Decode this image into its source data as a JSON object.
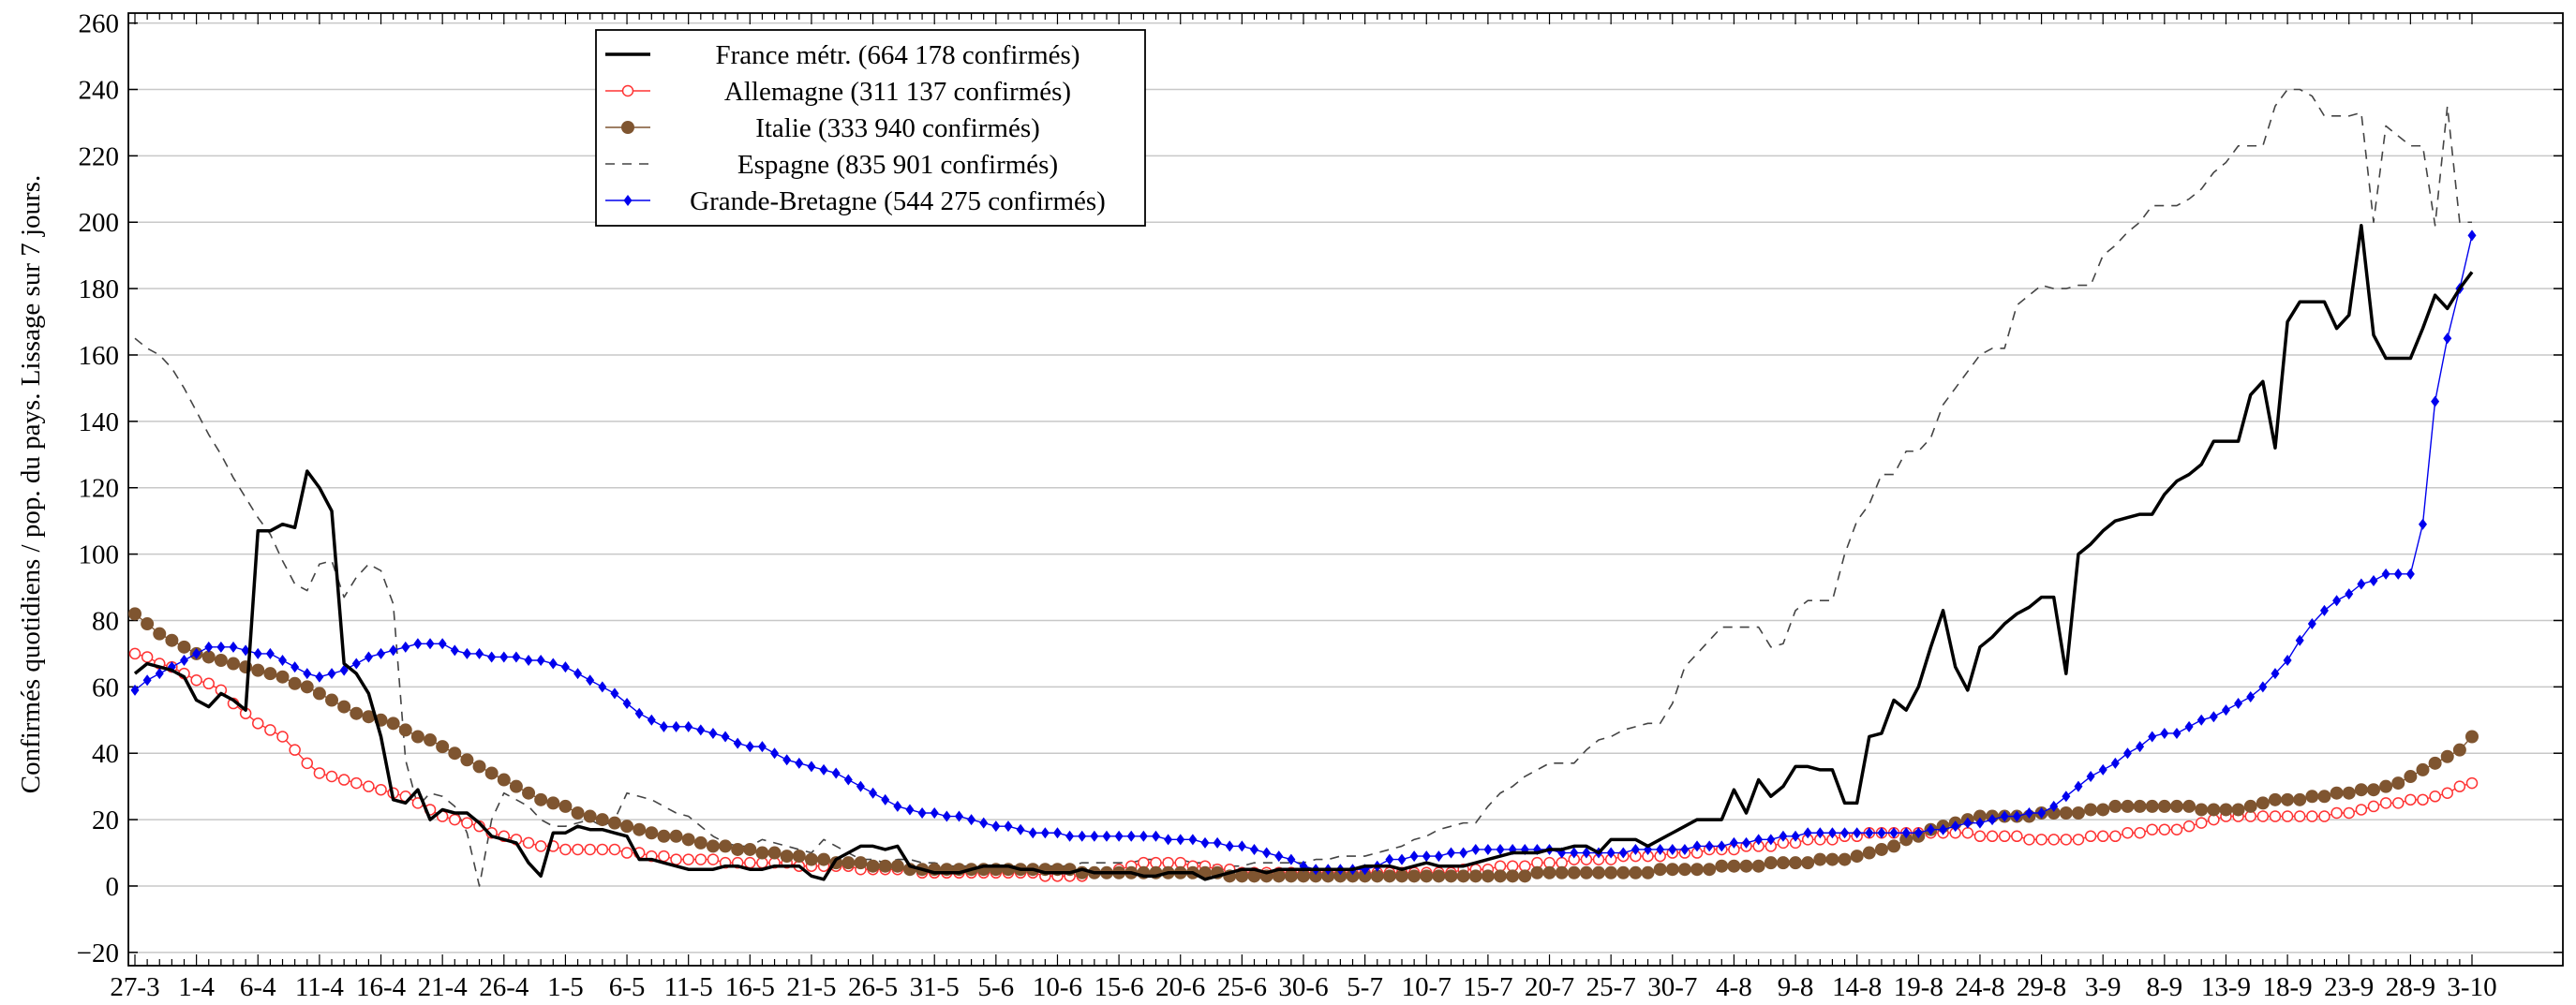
{
  "chart_data": {
    "type": "line",
    "ylabel": "Confirmés quotidiens / pop. du pays. Lissage sur 7 jours.",
    "grid": true,
    "legend": "upper left",
    "ylim": [
      -24,
      263
    ],
    "yticks": [
      {
        "value": -20,
        "label": "−20"
      },
      0,
      20,
      40,
      60,
      80,
      100,
      120,
      140,
      160,
      180,
      200,
      220,
      240,
      260
    ],
    "categories": [
      "27-3",
      null,
      null,
      null,
      null,
      "1-4",
      null,
      null,
      null,
      null,
      "6-4",
      null,
      null,
      null,
      null,
      "11-4",
      null,
      null,
      null,
      null,
      "16-4",
      null,
      null,
      null,
      null,
      "21-4",
      null,
      null,
      null,
      null,
      "26-4",
      null,
      null,
      null,
      null,
      "1-5",
      null,
      null,
      null,
      null,
      "6-5",
      null,
      null,
      null,
      null,
      "11-5",
      null,
      null,
      null,
      null,
      "16-5",
      null,
      null,
      null,
      null,
      "21-5",
      null,
      null,
      null,
      null,
      "26-5",
      null,
      null,
      null,
      null,
      "31-5",
      null,
      null,
      null,
      null,
      "5-6",
      null,
      null,
      null,
      null,
      "10-6",
      null,
      null,
      null,
      null,
      "15-6",
      null,
      null,
      null,
      null,
      "20-6",
      null,
      null,
      null,
      null,
      "25-6",
      null,
      null,
      null,
      null,
      "30-6",
      null,
      null,
      null,
      null,
      "5-7",
      null,
      null,
      null,
      null,
      "10-7",
      null,
      null,
      null,
      null,
      "15-7",
      null,
      null,
      null,
      null,
      "20-7",
      null,
      null,
      null,
      null,
      "25-7",
      null,
      null,
      null,
      null,
      "30-7",
      null,
      null,
      null,
      null,
      "4-8",
      null,
      null,
      null,
      null,
      "9-8",
      null,
      null,
      null,
      null,
      "14-8",
      null,
      null,
      null,
      null,
      "19-8",
      null,
      null,
      null,
      null,
      "24-8",
      null,
      null,
      null,
      null,
      "29-8",
      null,
      null,
      null,
      null,
      "3-9",
      null,
      null,
      null,
      null,
      "8-9",
      null,
      null,
      null,
      null,
      "13-9",
      null,
      null,
      null,
      null,
      "18-9",
      null,
      null,
      null,
      null,
      "23-9",
      null,
      null,
      null,
      null,
      "28-9",
      null,
      null,
      null,
      null,
      "3-10"
    ],
    "series": [
      {
        "name": "France métr. (664 178 confirmés)",
        "color": "#000000",
        "marker": "none",
        "dashed": false,
        "values": [
          64,
          67,
          66,
          65,
          63,
          56,
          54,
          58,
          56,
          53,
          107,
          107,
          109,
          108,
          125,
          120,
          113,
          67,
          64,
          58,
          45,
          26,
          25,
          29,
          20,
          23,
          22,
          22,
          19,
          15,
          14,
          13,
          7,
          3,
          16,
          16,
          18,
          17,
          17,
          16,
          15,
          8,
          8,
          7,
          6,
          5,
          5,
          5,
          6,
          6,
          5,
          5,
          6,
          6,
          6,
          3,
          2,
          8,
          10,
          12,
          12,
          11,
          12,
          6,
          5,
          4,
          4,
          4,
          5,
          6,
          6,
          6,
          5,
          5,
          4,
          4,
          4,
          5,
          4,
          4,
          4,
          4,
          3,
          3,
          4,
          4,
          4,
          2,
          3,
          4,
          5,
          5,
          4,
          5,
          5,
          5,
          5,
          5,
          5,
          5,
          6,
          6,
          6,
          5,
          6,
          7,
          6,
          6,
          6,
          7,
          8,
          9,
          10,
          10,
          10,
          11,
          11,
          12,
          12,
          10,
          14,
          14,
          14,
          12,
          14,
          16,
          18,
          20,
          20,
          20,
          29,
          22,
          32,
          27,
          30,
          36,
          36,
          35,
          35,
          25,
          25,
          45,
          46,
          56,
          53,
          60,
          72,
          83,
          66,
          59,
          72,
          75,
          79,
          82,
          84,
          87,
          87,
          64,
          100,
          103,
          107,
          110,
          111,
          112,
          112,
          118,
          122,
          124,
          127,
          134,
          134,
          134,
          148,
          152,
          132,
          170,
          176,
          176,
          176,
          168,
          172,
          199,
          166,
          159,
          159,
          159,
          168,
          178,
          174,
          180,
          185
        ]
      },
      {
        "name": "Allemagne (311 137 confirmés)",
        "color": "#ff3333",
        "marker": "circle-open",
        "dashed": false,
        "values": [
          70,
          69,
          67,
          66,
          64,
          62,
          61,
          59,
          55,
          52,
          49,
          47,
          45,
          41,
          37,
          34,
          33,
          32,
          31,
          30,
          29,
          28,
          27,
          25,
          23,
          21,
          20,
          19,
          18,
          16,
          15,
          14,
          13,
          12,
          12,
          11,
          11,
          11,
          11,
          11,
          10,
          10,
          9,
          9,
          8,
          8,
          8,
          8,
          7,
          7,
          7,
          7,
          7,
          7,
          6,
          6,
          6,
          6,
          6,
          5,
          5,
          5,
          5,
          5,
          4,
          4,
          4,
          4,
          4,
          4,
          4,
          4,
          4,
          4,
          3,
          3,
          3,
          3,
          4,
          4,
          5,
          6,
          7,
          7,
          7,
          7,
          6,
          6,
          5,
          5,
          4,
          4,
          4,
          4,
          4,
          4,
          4,
          4,
          4,
          4,
          4,
          4,
          4,
          4,
          4,
          4,
          4,
          4,
          5,
          5,
          5,
          6,
          6,
          6,
          7,
          7,
          7,
          8,
          8,
          8,
          8,
          9,
          9,
          9,
          9,
          10,
          10,
          10,
          11,
          11,
          11,
          12,
          12,
          12,
          13,
          13,
          14,
          14,
          14,
          15,
          15,
          16,
          16,
          16,
          16,
          16,
          16,
          16,
          16,
          16,
          15,
          15,
          15,
          15,
          14,
          14,
          14,
          14,
          14,
          15,
          15,
          15,
          16,
          16,
          17,
          17,
          17,
          18,
          19,
          20,
          21,
          21,
          21,
          21,
          21,
          21,
          21,
          21,
          21,
          22,
          22,
          23,
          24,
          25,
          25,
          26,
          26,
          27,
          28,
          30,
          31
        ]
      },
      {
        "name": "Italie (333 940 confirmés)",
        "color": "#7f5530",
        "marker": "circle",
        "dashed": false,
        "values": [
          82,
          79,
          76,
          74,
          72,
          70,
          69,
          68,
          67,
          66,
          65,
          64,
          63,
          61,
          60,
          58,
          56,
          54,
          52,
          51,
          50,
          49,
          47,
          45,
          44,
          42,
          40,
          38,
          36,
          34,
          32,
          30,
          28,
          26,
          25,
          24,
          22,
          21,
          20,
          19,
          18,
          17,
          16,
          15,
          15,
          14,
          13,
          12,
          12,
          11,
          11,
          10,
          10,
          9,
          9,
          8,
          8,
          7,
          7,
          7,
          6,
          6,
          6,
          5,
          5,
          5,
          5,
          5,
          5,
          5,
          5,
          5,
          5,
          5,
          5,
          5,
          5,
          4,
          4,
          4,
          4,
          4,
          4,
          4,
          4,
          4,
          4,
          4,
          4,
          3,
          3,
          3,
          3,
          3,
          3,
          3,
          3,
          3,
          3,
          3,
          3,
          3,
          3,
          3,
          3,
          3,
          3,
          3,
          3,
          3,
          3,
          3,
          3,
          3,
          4,
          4,
          4,
          4,
          4,
          4,
          4,
          4,
          4,
          4,
          5,
          5,
          5,
          5,
          5,
          6,
          6,
          6,
          6,
          7,
          7,
          7,
          7,
          8,
          8,
          8,
          9,
          10,
          11,
          12,
          14,
          15,
          17,
          18,
          19,
          20,
          21,
          21,
          21,
          21,
          21,
          22,
          22,
          22,
          22,
          23,
          23,
          24,
          24,
          24,
          24,
          24,
          24,
          24,
          23,
          23,
          23,
          23,
          24,
          25,
          26,
          26,
          26,
          27,
          27,
          28,
          28,
          29,
          29,
          30,
          31,
          33,
          35,
          37,
          39,
          41,
          45
        ]
      },
      {
        "name": "Espagne (835 901 confirmés)",
        "color": "#444444",
        "marker": "none",
        "dashed": true,
        "values": [
          165,
          162,
          160,
          156,
          150,
          143,
          136,
          130,
          123,
          117,
          111,
          106,
          98,
          91,
          89,
          97,
          98,
          87,
          93,
          97,
          95,
          85,
          38,
          24,
          28,
          27,
          24,
          16,
          0,
          20,
          28,
          26,
          24,
          20,
          18,
          18,
          19,
          20,
          18,
          20,
          28,
          27,
          26,
          24,
          22,
          21,
          18,
          15,
          13,
          12,
          12,
          14,
          13,
          12,
          11,
          10,
          14,
          12,
          10,
          8,
          8,
          7,
          8,
          8,
          7,
          7,
          6,
          6,
          6,
          6,
          6,
          6,
          6,
          6,
          6,
          6,
          6,
          7,
          7,
          7,
          7,
          7,
          8,
          8,
          8,
          8,
          7,
          7,
          6,
          6,
          6,
          7,
          7,
          7,
          7,
          7,
          8,
          8,
          9,
          9,
          9,
          10,
          11,
          12,
          14,
          15,
          17,
          18,
          19,
          19,
          24,
          28,
          30,
          33,
          35,
          37,
          37,
          37,
          41,
          44,
          45,
          47,
          48,
          49,
          49,
          55,
          66,
          70,
          74,
          78,
          78,
          78,
          78,
          72,
          73,
          83,
          86,
          86,
          86,
          100,
          110,
          115,
          124,
          124,
          131,
          131,
          135,
          145,
          150,
          155,
          160,
          162,
          162,
          175,
          178,
          181,
          180,
          180,
          181,
          181,
          190,
          193,
          197,
          200,
          205,
          205,
          205,
          207,
          210,
          215,
          218,
          223,
          223,
          223,
          235,
          240,
          240,
          238,
          232,
          232,
          232,
          233,
          200,
          229,
          226,
          223,
          223,
          199,
          235,
          200,
          200
        ]
      },
      {
        "name": "Grande-Bretagne (544 275 confirmés)",
        "color": "#0000ee",
        "marker": "diamond",
        "dashed": false,
        "values": [
          59,
          62,
          64,
          66,
          68,
          70,
          72,
          72,
          72,
          71,
          70,
          70,
          68,
          66,
          64,
          63,
          64,
          65,
          67,
          69,
          70,
          71,
          72,
          73,
          73,
          73,
          71,
          70,
          70,
          69,
          69,
          69,
          68,
          68,
          67,
          66,
          64,
          62,
          60,
          58,
          55,
          52,
          50,
          48,
          48,
          48,
          47,
          46,
          45,
          43,
          42,
          42,
          40,
          38,
          37,
          36,
          35,
          34,
          32,
          30,
          28,
          26,
          24,
          23,
          22,
          22,
          21,
          21,
          20,
          19,
          18,
          18,
          17,
          16,
          16,
          16,
          15,
          15,
          15,
          15,
          15,
          15,
          15,
          15,
          14,
          14,
          14,
          13,
          13,
          12,
          12,
          11,
          10,
          9,
          8,
          6,
          5,
          5,
          5,
          5,
          5,
          6,
          8,
          8,
          9,
          9,
          9,
          10,
          10,
          11,
          11,
          11,
          11,
          11,
          11,
          11,
          10,
          10,
          10,
          10,
          10,
          10,
          11,
          11,
          11,
          11,
          11,
          12,
          12,
          12,
          13,
          13,
          14,
          14,
          15,
          15,
          16,
          16,
          16,
          16,
          16,
          16,
          16,
          16,
          16,
          16,
          17,
          17,
          18,
          19,
          19,
          20,
          21,
          21,
          22,
          22,
          24,
          27,
          30,
          33,
          35,
          37,
          40,
          42,
          45,
          46,
          46,
          48,
          50,
          51,
          53,
          55,
          57,
          60,
          64,
          68,
          74,
          79,
          83,
          86,
          88,
          91,
          92,
          94,
          94,
          94,
          109,
          146,
          165,
          180,
          196
        ]
      }
    ]
  }
}
